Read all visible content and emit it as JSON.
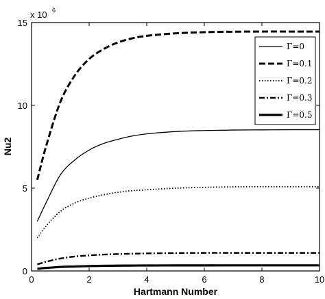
{
  "chart_data": {
    "type": "line",
    "title": "",
    "xlabel": "Hartmann Number",
    "ylabel": "Nu2",
    "y_multiplier_label": "x 10",
    "y_multiplier_exponent": "6",
    "xlim": [
      0,
      10
    ],
    "ylim": [
      0,
      15000000
    ],
    "x_ticks": [
      0,
      2,
      4,
      6,
      8,
      10
    ],
    "x_tick_labels": [
      "0",
      "2",
      "4",
      "6",
      "8",
      "10"
    ],
    "y_ticks": [
      0,
      5000000,
      10000000,
      15000000
    ],
    "y_tick_labels": [
      "0",
      "5",
      "10",
      "15"
    ],
    "grid": false,
    "legend_position": "top-right",
    "x": [
      0.2,
      0.5,
      1,
      1.5,
      2,
      2.5,
      3,
      3.5,
      4,
      5,
      6,
      7,
      8,
      9,
      10
    ],
    "series": [
      {
        "name": "Γ=0",
        "style": "solid",
        "values": [
          3000000,
          4100000,
          5800000,
          6700000,
          7300000,
          7700000,
          7950000,
          8150000,
          8280000,
          8420000,
          8480000,
          8510000,
          8520000,
          8530000,
          8530000
        ]
      },
      {
        "name": "Γ=0.1",
        "style": "dashed",
        "values": [
          5500000,
          7500000,
          10200000,
          11800000,
          12800000,
          13400000,
          13800000,
          14050000,
          14200000,
          14350000,
          14420000,
          14450000,
          14460000,
          14460000,
          14460000
        ]
      },
      {
        "name": "Γ=0.2",
        "style": "dotted",
        "values": [
          2000000,
          2700000,
          3600000,
          4100000,
          4400000,
          4600000,
          4750000,
          4850000,
          4900000,
          5000000,
          5050000,
          5080000,
          5090000,
          5090000,
          5090000
        ]
      },
      {
        "name": "Γ=0.3",
        "style": "dashdot",
        "values": [
          400000,
          550000,
          750000,
          870000,
          940000,
          990000,
          1020000,
          1040000,
          1060000,
          1080000,
          1090000,
          1090000,
          1090000,
          1090000,
          1090000
        ]
      },
      {
        "name": "Γ=0.5",
        "style": "thick",
        "values": [
          130000,
          180000,
          240000,
          270000,
          295000,
          310000,
          320000,
          327000,
          330000,
          335000,
          337000,
          338000,
          338000,
          338000,
          338000
        ]
      }
    ]
  }
}
